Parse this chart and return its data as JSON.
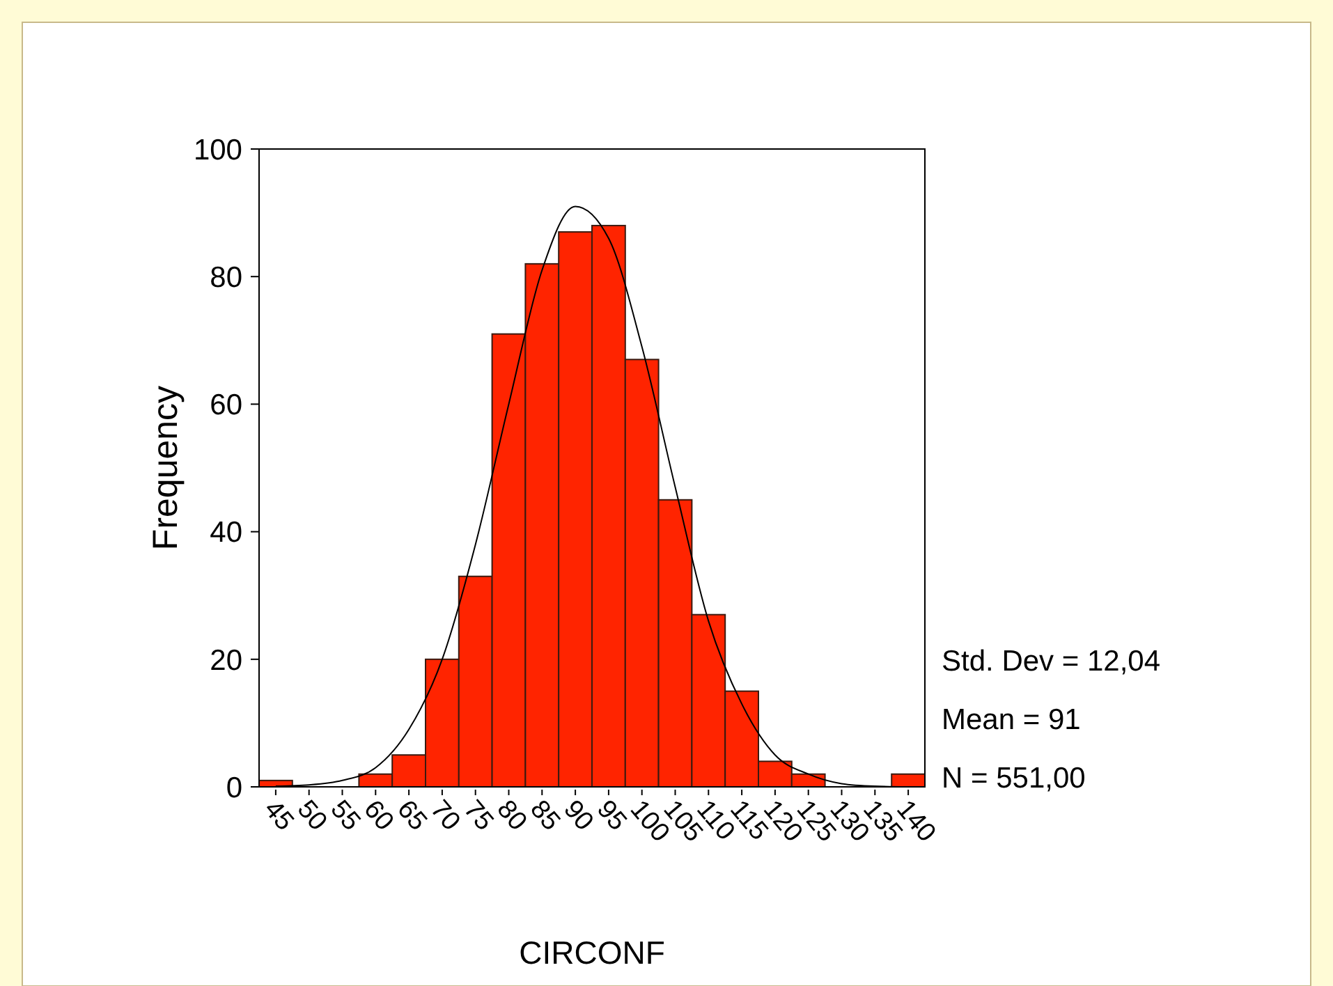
{
  "chart_data": {
    "type": "histogram",
    "xlabel": "CIRCONF",
    "ylabel": "Frequency",
    "bins": [
      42.5,
      47.5,
      52.5,
      57.5,
      62.5,
      67.5,
      72.5,
      77.5,
      82.5,
      87.5,
      92.5,
      97.5,
      102.5,
      107.5,
      112.5,
      117.5,
      122.5,
      127.5,
      132.5,
      137.5,
      142.5
    ],
    "values": [
      1,
      0,
      0,
      2,
      5,
      20,
      33,
      71,
      82,
      87,
      88,
      67,
      45,
      27,
      15,
      4,
      2,
      0,
      0,
      2
    ],
    "color": "#ff2400",
    "series": [
      {
        "type": "line",
        "color": "#000000",
        "x": [
          45,
          50,
          55,
          60,
          65,
          70,
          75,
          80,
          85,
          90,
          95,
          100,
          105,
          110,
          115,
          120,
          125,
          130,
          135,
          140
        ],
        "values": [
          0.1,
          0.3,
          1,
          3,
          9,
          20,
          38,
          60,
          81,
          91,
          86,
          69,
          47,
          26,
          13,
          5,
          2,
          0.5,
          0.1,
          0
        ]
      }
    ],
    "xlim": [
      42.5,
      142.5
    ],
    "ylim": [
      0,
      100
    ],
    "xticks": [
      45,
      50,
      55,
      60,
      65,
      70,
      75,
      80,
      85,
      90,
      95,
      100,
      105,
      110,
      115,
      120,
      125,
      130,
      135,
      140
    ],
    "yticks": [
      0,
      20,
      40,
      60,
      80,
      100
    ],
    "annotations": [
      "Std. Dev = 12,04",
      "Mean = 91",
      "N = 551,00"
    ],
    "grid": false,
    "line_style": "solid"
  }
}
